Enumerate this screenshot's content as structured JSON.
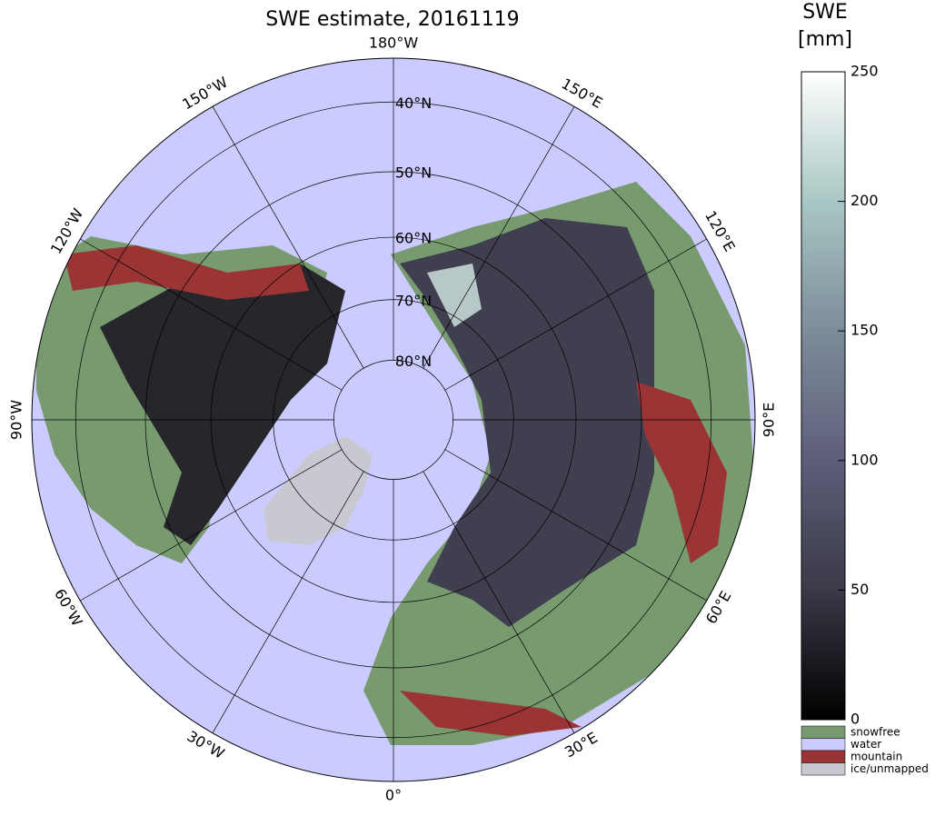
{
  "title": "SWE estimate, 20161119",
  "longitude_labels": [
    "180°W",
    "150°W",
    "120°W",
    "90°W",
    "60°W",
    "30°W",
    "0°",
    "30°E",
    "60°E",
    "90°E",
    "120°E",
    "150°E"
  ],
  "latitude_labels": [
    "40°N",
    "50°N",
    "60°N",
    "70°N",
    "80°N"
  ],
  "colorbar": {
    "title": [
      "SWE",
      "[mm]"
    ],
    "lim": [
      0,
      250
    ],
    "ticks": [
      0,
      50,
      100,
      150,
      200,
      250
    ]
  },
  "legend": [
    {
      "label": "snowfree",
      "color": "#779b6f"
    },
    {
      "label": "water",
      "color": "#cccbff"
    },
    {
      "label": "mountain",
      "color": "#9b3535"
    },
    {
      "label": "ice/unmapped",
      "color": "#c8c8d0"
    }
  ]
}
